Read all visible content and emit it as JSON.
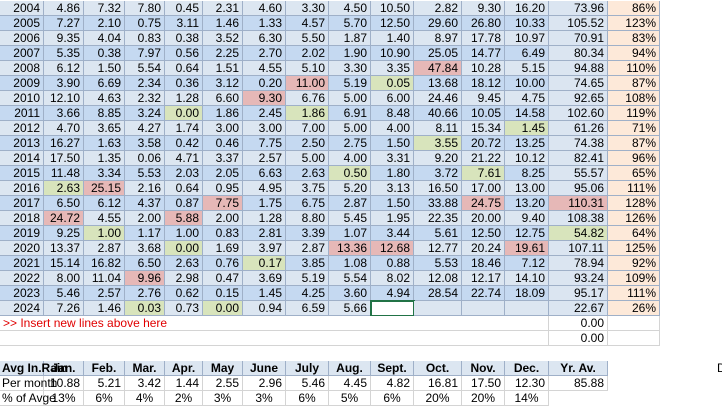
{
  "rows": [
    {
      "year": "2004",
      "months": [
        "4.86",
        "7.32",
        "7.80",
        "0.45",
        "2.31",
        "4.60",
        "3.30",
        "4.50",
        "10.50",
        "2.82",
        "9.30",
        "16.20"
      ],
      "total": "73.96",
      "percent": "86%"
    },
    {
      "year": "2005",
      "months": [
        "7.27",
        "2.10",
        "0.75",
        "3.11",
        "1.46",
        "1.33",
        "4.57",
        "5.70",
        "12.50",
        "29.60",
        "26.80",
        "10.33"
      ],
      "total": "105.52",
      "percent": "123%"
    },
    {
      "year": "2006",
      "months": [
        "9.35",
        "4.04",
        "0.83",
        "0.38",
        "3.52",
        "6.30",
        "5.50",
        "1.87",
        "1.40",
        "8.97",
        "17.78",
        "10.97"
      ],
      "total": "70.91",
      "percent": "83%"
    },
    {
      "year": "2007",
      "months": [
        "5.35",
        "0.38",
        "7.97",
        "0.56",
        "2.25",
        "2.70",
        "2.02",
        "1.90",
        "10.90",
        "25.05",
        "14.77",
        "6.49"
      ],
      "total": "80.34",
      "percent": "94%"
    },
    {
      "year": "2008",
      "months": [
        "6.12",
        "1.50",
        "5.54",
        "0.64",
        "1.51",
        "4.55",
        "5.10",
        "3.30",
        "3.35",
        "47.84",
        "10.28",
        "5.15"
      ],
      "total": "94.88",
      "percent": "110%"
    },
    {
      "year": "2009",
      "months": [
        "3.90",
        "6.69",
        "2.34",
        "0.36",
        "3.12",
        "0.20",
        "11.00",
        "5.19",
        "0.05",
        "13.68",
        "18.12",
        "10.00"
      ],
      "total": "74.65",
      "percent": "87%"
    },
    {
      "year": "2010",
      "months": [
        "12.10",
        "4.63",
        "2.32",
        "1.28",
        "6.60",
        "9.30",
        "6.76",
        "5.00",
        "6.00",
        "24.46",
        "9.45",
        "4.75"
      ],
      "total": "92.65",
      "percent": "108%"
    },
    {
      "year": "2011",
      "months": [
        "3.66",
        "8.85",
        "3.24",
        "0.00",
        "1.86",
        "2.45",
        "1.86",
        "6.91",
        "8.48",
        "40.66",
        "10.05",
        "14.58"
      ],
      "total": "102.60",
      "percent": "119%"
    },
    {
      "year": "2012",
      "months": [
        "4.70",
        "3.65",
        "4.27",
        "1.74",
        "3.00",
        "3.00",
        "7.00",
        "5.00",
        "4.00",
        "8.11",
        "15.34",
        "1.45"
      ],
      "total": "61.26",
      "percent": "71%"
    },
    {
      "year": "2013",
      "months": [
        "16.27",
        "1.63",
        "3.58",
        "0.42",
        "0.46",
        "7.75",
        "2.50",
        "2.75",
        "1.50",
        "3.55",
        "20.72",
        "13.25"
      ],
      "total": "74.38",
      "percent": "87%"
    },
    {
      "year": "2014",
      "months": [
        "17.50",
        "1.35",
        "0.06",
        "4.71",
        "3.37",
        "2.57",
        "5.00",
        "4.00",
        "3.31",
        "9.20",
        "21.22",
        "10.12"
      ],
      "total": "82.41",
      "percent": "96%"
    },
    {
      "year": "2015",
      "months": [
        "11.48",
        "3.34",
        "5.53",
        "2.03",
        "2.05",
        "6.63",
        "2.63",
        "0.50",
        "1.80",
        "3.72",
        "7.61",
        "8.25"
      ],
      "total": "55.57",
      "percent": "65%"
    },
    {
      "year": "2016",
      "months": [
        "2.63",
        "25.15",
        "2.16",
        "0.64",
        "0.95",
        "4.95",
        "3.75",
        "5.20",
        "3.13",
        "16.50",
        "17.00",
        "13.00"
      ],
      "total": "95.06",
      "percent": "111%"
    },
    {
      "year": "2017",
      "months": [
        "6.50",
        "6.12",
        "4.37",
        "0.87",
        "7.75",
        "1.75",
        "6.75",
        "2.87",
        "1.50",
        "33.88",
        "24.75",
        "13.20"
      ],
      "total": "110.31",
      "percent": "128%"
    },
    {
      "year": "2018",
      "months": [
        "24.72",
        "4.55",
        "2.00",
        "5.88",
        "2.00",
        "1.28",
        "8.80",
        "5.45",
        "1.95",
        "22.35",
        "20.00",
        "9.40"
      ],
      "total": "108.38",
      "percent": "126%"
    },
    {
      "year": "2019",
      "months": [
        "9.25",
        "1.00",
        "1.17",
        "1.00",
        "0.83",
        "2.81",
        "3.39",
        "1.07",
        "3.44",
        "5.61",
        "12.50",
        "12.75"
      ],
      "total": "54.82",
      "percent": "64%"
    },
    {
      "year": "2020",
      "months": [
        "13.37",
        "2.87",
        "3.68",
        "0.00",
        "1.69",
        "3.97",
        "2.87",
        "13.36",
        "12.68",
        "12.77",
        "20.24",
        "19.61"
      ],
      "total": "107.11",
      "percent": "125%"
    },
    {
      "year": "2021",
      "months": [
        "15.14",
        "16.82",
        "6.50",
        "2.63",
        "0.76",
        "0.17",
        "3.85",
        "1.08",
        "0.88",
        "5.53",
        "18.46",
        "7.12"
      ],
      "total": "78.94",
      "percent": "92%"
    },
    {
      "year": "2022",
      "months": [
        "8.00",
        "11.04",
        "9.96",
        "2.98",
        "0.47",
        "3.69",
        "5.19",
        "5.54",
        "8.02",
        "12.08",
        "12.17",
        "14.10"
      ],
      "total": "93.24",
      "percent": "109%"
    },
    {
      "year": "2023",
      "months": [
        "5.46",
        "2.57",
        "2.76",
        "0.62",
        "0.15",
        "1.45",
        "4.25",
        "3.60",
        "4.94",
        "28.54",
        "22.74",
        "18.09"
      ],
      "total": "95.17",
      "percent": "111%"
    },
    {
      "year": "2024",
      "months": [
        "7.26",
        "1.46",
        "0.03",
        "0.73",
        "0.00",
        "0.94",
        "6.59",
        "5.66",
        null,
        null,
        null,
        null
      ],
      "total": "22.67",
      "percent": "26%"
    }
  ],
  "insert_row": {
    "note": ">> Insert new lines above here",
    "total": "0.00"
  },
  "blank_row": {
    "total": "0.00"
  },
  "footer": {
    "header": [
      "Avg In.Rain",
      "Jan.",
      "Feb.",
      "Mar.",
      "Apr.",
      "May",
      "June",
      "July",
      "Aug.",
      "Sept.",
      "Oct.",
      "Nov.",
      "Dec.",
      "Yr. Av."
    ],
    "per_month": {
      "label": "Per month",
      "values": [
        "10.88",
        "5.21",
        "3.42",
        "1.44",
        "2.55",
        "2.96",
        "5.46",
        "4.45",
        "4.82",
        "16.81",
        "17.50",
        "12.30",
        "85.88"
      ]
    },
    "percent": {
      "label": "% of Avge",
      "values": [
        "13%",
        "6%",
        "4%",
        "2%",
        "3%",
        "3%",
        "6%",
        "5%",
        "6%",
        "20%",
        "20%",
        "14%"
      ]
    },
    "edge_text": "D"
  }
}
